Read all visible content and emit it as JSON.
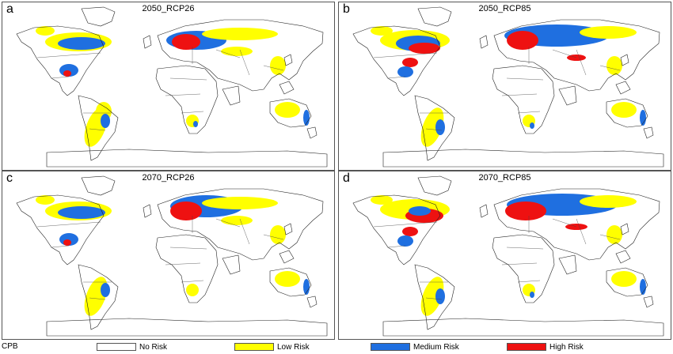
{
  "panels": [
    {
      "letter": "a",
      "title": "2050_RCP26"
    },
    {
      "letter": "b",
      "title": "2050_RCP85"
    },
    {
      "letter": "c",
      "title": "2070_RCP26"
    },
    {
      "letter": "d",
      "title": "2070_RCP85"
    }
  ],
  "legend": {
    "title": "CPB",
    "items": [
      {
        "label": "No Risk",
        "color": "#ffffff"
      },
      {
        "label": "Low Risk",
        "color": "#ffff00"
      },
      {
        "label": "Medium Risk",
        "color": "#1f6fe0"
      },
      {
        "label": "High Risk",
        "color": "#ee1111"
      }
    ]
  }
}
